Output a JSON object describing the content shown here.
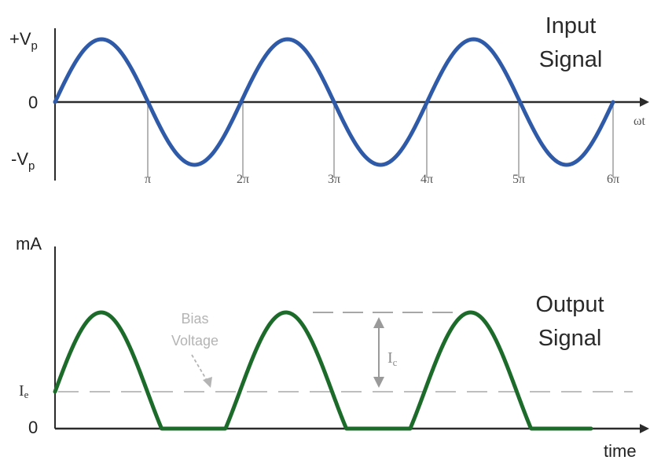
{
  "colors": {
    "input_wave": "#2f5aa8",
    "output_wave": "#1d6b2a",
    "axis": "#2b2b2b",
    "guide": "#8e8e8e",
    "annotation": "#b4b4b4"
  },
  "input_signal": {
    "title_line1": "Input",
    "title_line2": "Signal",
    "y_labels": {
      "pos_main": "+V",
      "pos_sub": "p",
      "zero": "0",
      "neg_main": "-V",
      "neg_sub": "p"
    },
    "x_axis_label": "ωt",
    "tick_labels": [
      "π",
      "2π",
      "3π",
      "4π",
      "5π",
      "6π"
    ]
  },
  "output_signal": {
    "title_line1": "Output",
    "title_line2": "Signal",
    "y_axis_label": "mA",
    "y_labels": {
      "bias_main": "I",
      "bias_sub": "e",
      "zero": "0"
    },
    "x_axis_label": "time",
    "bias_annotation_line1": "Bias",
    "bias_annotation_line2": "Voltage",
    "ic_label_main": "I",
    "ic_label_sub": "c"
  }
}
